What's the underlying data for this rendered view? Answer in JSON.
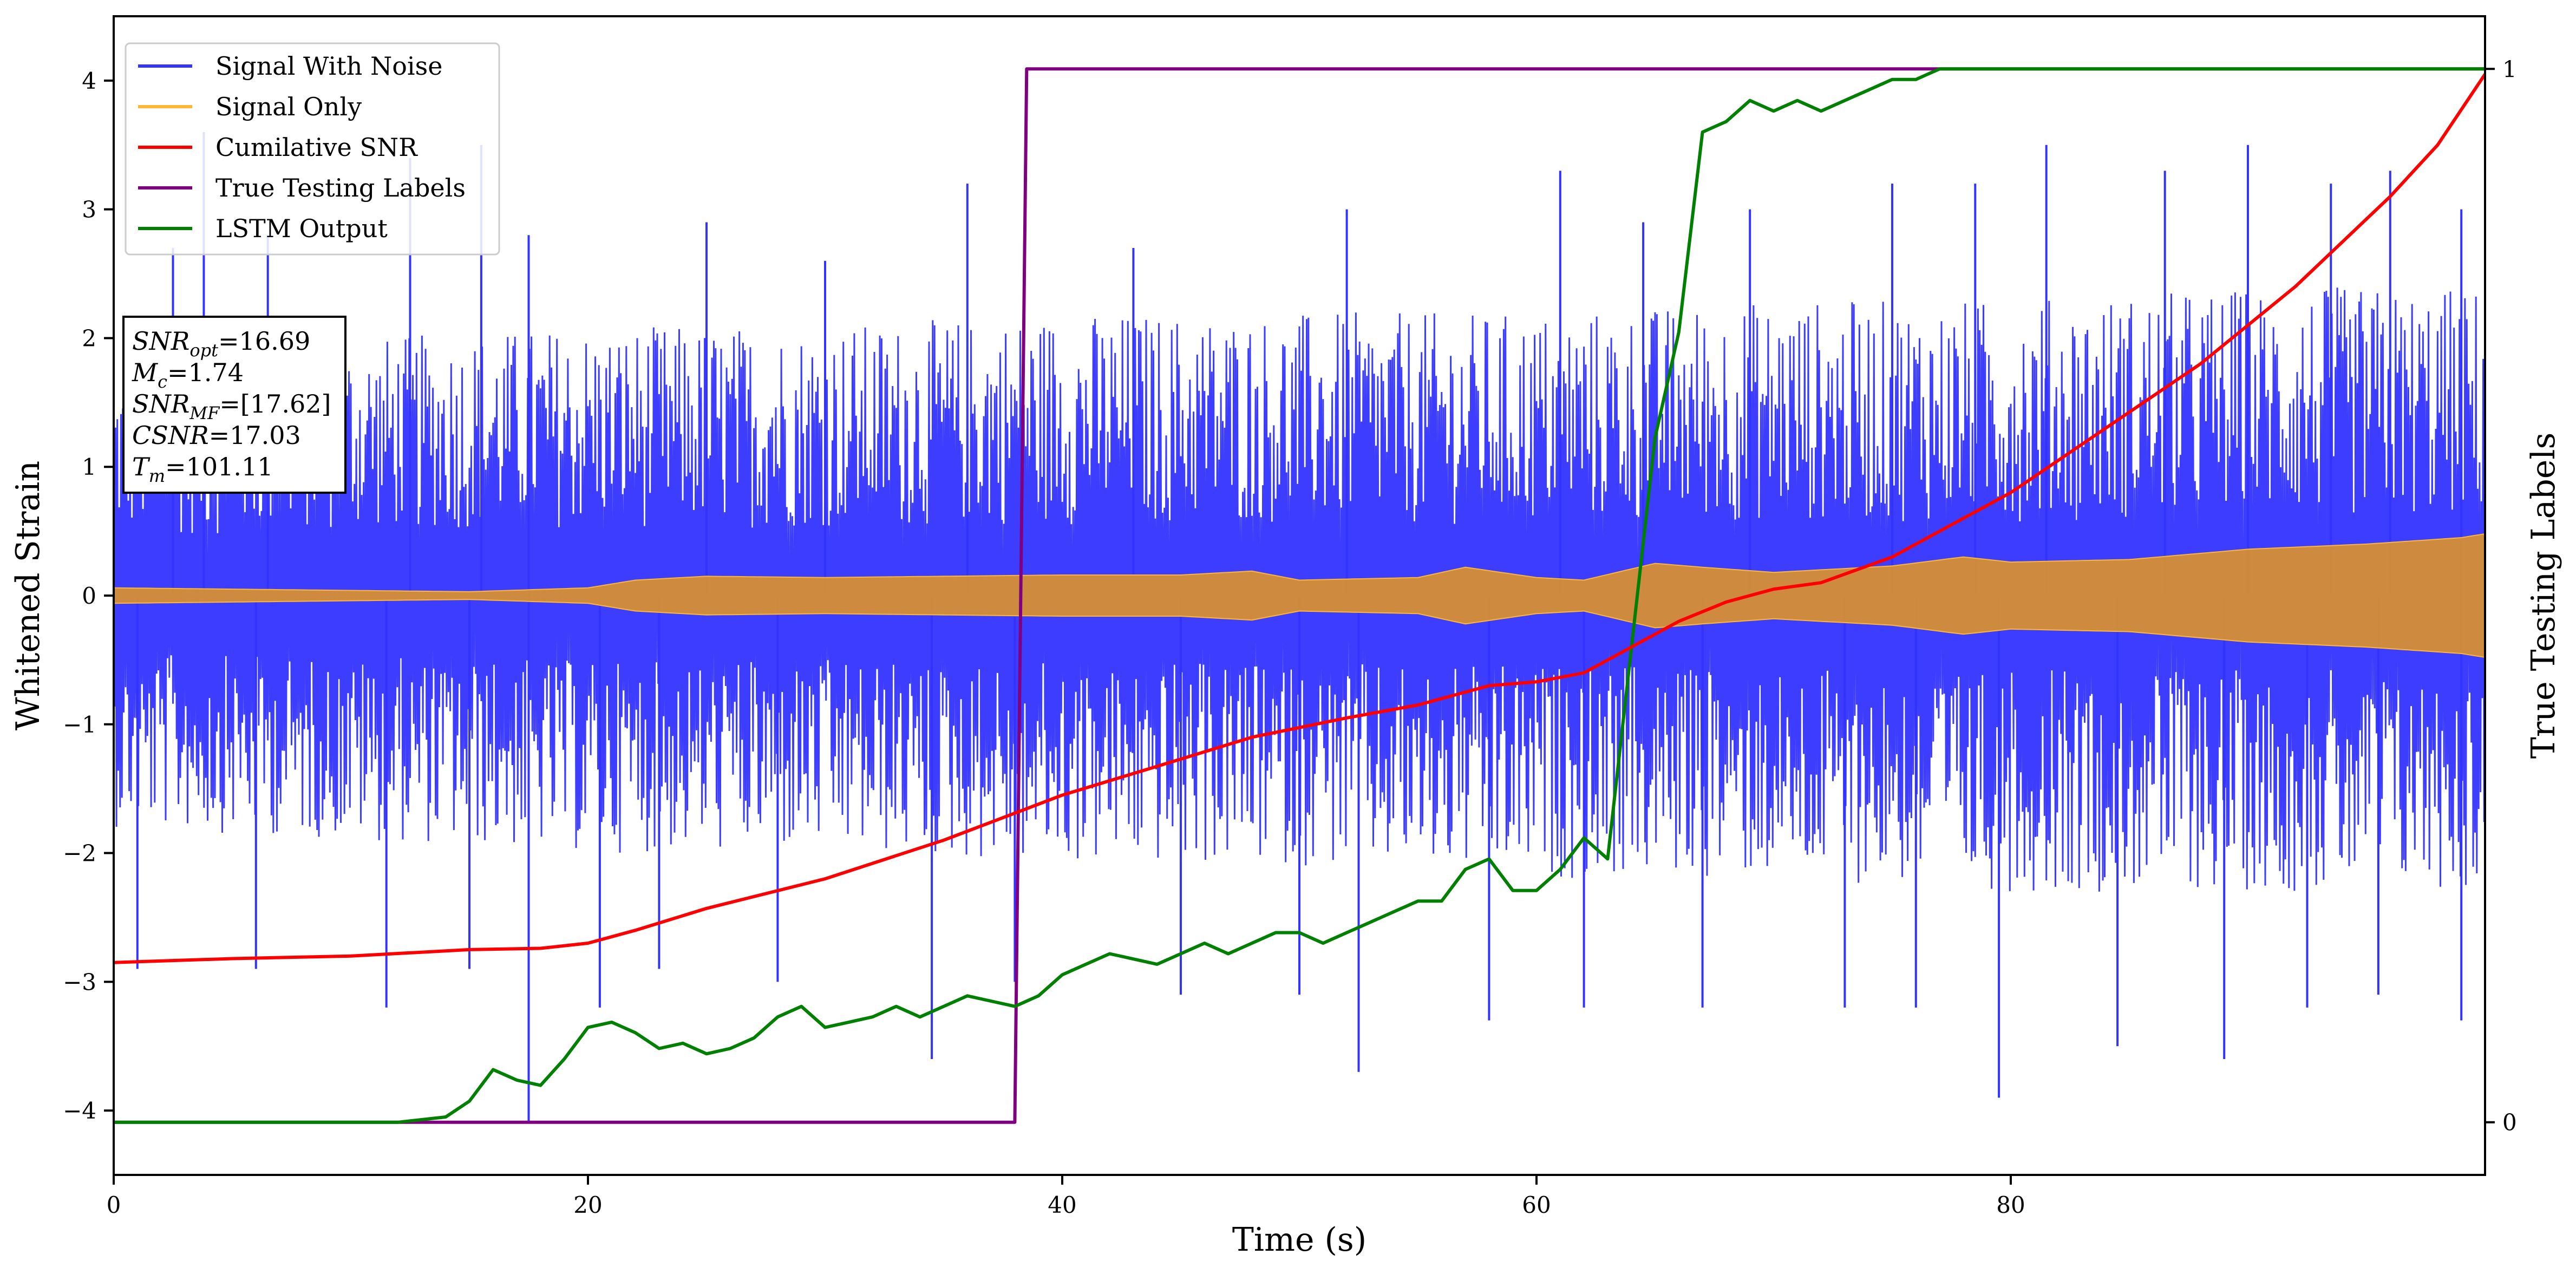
{
  "chart_data": {
    "type": "line",
    "xlabel": "Time (s)",
    "ylabel": "Whitened Strain",
    "y2label": "True Testing Labels",
    "xlim": [
      0,
      100
    ],
    "ylim": [
      -4.5,
      4.5
    ],
    "y2lim": [
      -0.05,
      1.05
    ],
    "x_ticks": [
      0,
      20,
      40,
      60,
      80
    ],
    "y_ticks": [
      -4,
      -3,
      -2,
      -1,
      0,
      1,
      2,
      3,
      4
    ],
    "y2_ticks": [
      0,
      1
    ],
    "grid": false,
    "legend": {
      "position": "top-left",
      "entries": [
        {
          "label": "Signal With Noise",
          "color": "#3333ff"
        },
        {
          "label": "Signal Only",
          "color": "#ffb733"
        },
        {
          "label": "Cumilative SNR",
          "color": "#ff0000"
        },
        {
          "label": "True Testing Labels",
          "color": "#800080"
        },
        {
          "label": "LSTM Output",
          "color": "#008000"
        }
      ]
    },
    "annotation": {
      "lines": [
        {
          "sym": "SNR",
          "sub": "opt",
          "value": "=16.69"
        },
        {
          "sym": "M",
          "sub": "c",
          "value": "=1.74"
        },
        {
          "sym": "SNR",
          "sub": "MF",
          "value": "=[17.62]"
        },
        {
          "sym": "CSNR",
          "sub": "",
          "value": "=17.03"
        },
        {
          "sym": "T",
          "sub": "m",
          "value": "=101.11"
        }
      ]
    },
    "series": [
      {
        "name": "Signal With Noise",
        "axis": "left",
        "color": "#3333ff",
        "style": "dense-noise",
        "band_x": [
          0,
          10,
          20,
          30,
          40,
          50,
          60,
          70,
          80,
          90,
          100
        ],
        "band_hi": [
          1.8,
          2.0,
          2.1,
          2.1,
          2.2,
          2.2,
          2.2,
          2.3,
          2.3,
          2.4,
          2.4
        ],
        "band_lo": [
          -1.8,
          -1.9,
          -2.0,
          -2.0,
          -2.1,
          -2.1,
          -2.2,
          -2.2,
          -2.3,
          -2.3,
          -2.3
        ],
        "spikes": [
          {
            "x": 2.5,
            "y": 2.7
          },
          {
            "x": 3.8,
            "y": 3.6
          },
          {
            "x": 6.5,
            "y": 2.8
          },
          {
            "x": 12.5,
            "y": 3.4
          },
          {
            "x": 15.5,
            "y": 3.5
          },
          {
            "x": 17.5,
            "y": 2.8
          },
          {
            "x": 25.0,
            "y": 2.9
          },
          {
            "x": 30.0,
            "y": 2.6
          },
          {
            "x": 36.0,
            "y": 3.2
          },
          {
            "x": 43.0,
            "y": 2.7
          },
          {
            "x": 52.0,
            "y": 3.0
          },
          {
            "x": 61.0,
            "y": 3.3
          },
          {
            "x": 64.5,
            "y": 2.9
          },
          {
            "x": 69.0,
            "y": 3.0
          },
          {
            "x": 75.0,
            "y": 3.2
          },
          {
            "x": 78.5,
            "y": 3.2
          },
          {
            "x": 81.5,
            "y": 3.5
          },
          {
            "x": 86.5,
            "y": 3.3
          },
          {
            "x": 90.0,
            "y": 3.5
          },
          {
            "x": 93.5,
            "y": 3.2
          },
          {
            "x": 96.0,
            "y": 3.3
          },
          {
            "x": 99.0,
            "y": 3.0
          },
          {
            "x": 1.0,
            "y": -2.9
          },
          {
            "x": 6.0,
            "y": -2.9
          },
          {
            "x": 11.5,
            "y": -3.2
          },
          {
            "x": 15.0,
            "y": -2.9
          },
          {
            "x": 17.5,
            "y": -4.1
          },
          {
            "x": 20.5,
            "y": -3.2
          },
          {
            "x": 23.0,
            "y": -2.9
          },
          {
            "x": 28.0,
            "y": -3.0
          },
          {
            "x": 34.5,
            "y": -3.6
          },
          {
            "x": 38.0,
            "y": -3.0
          },
          {
            "x": 45.0,
            "y": -3.1
          },
          {
            "x": 50.0,
            "y": -3.1
          },
          {
            "x": 52.5,
            "y": -3.7
          },
          {
            "x": 58.0,
            "y": -3.3
          },
          {
            "x": 62.0,
            "y": -3.2
          },
          {
            "x": 67.0,
            "y": -3.2
          },
          {
            "x": 73.0,
            "y": -3.2
          },
          {
            "x": 76.0,
            "y": -3.2
          },
          {
            "x": 79.5,
            "y": -3.9
          },
          {
            "x": 84.5,
            "y": -3.5
          },
          {
            "x": 89.0,
            "y": -3.6
          },
          {
            "x": 92.5,
            "y": -3.2
          },
          {
            "x": 95.5,
            "y": -3.1
          },
          {
            "x": 99.0,
            "y": -3.3
          }
        ]
      },
      {
        "name": "Signal Only",
        "axis": "left",
        "color": "#ffb733",
        "style": "envelope",
        "x": [
          0,
          5,
          10,
          15,
          20,
          22,
          25,
          30,
          35,
          40,
          45,
          48,
          50,
          55,
          57,
          60,
          62,
          65,
          67,
          70,
          75,
          78,
          80,
          85,
          90,
          95,
          99,
          100
        ],
        "amp": [
          0.06,
          0.05,
          0.04,
          0.03,
          0.06,
          0.12,
          0.15,
          0.14,
          0.15,
          0.16,
          0.16,
          0.19,
          0.12,
          0.14,
          0.22,
          0.14,
          0.12,
          0.25,
          0.22,
          0.18,
          0.23,
          0.3,
          0.26,
          0.28,
          0.36,
          0.4,
          0.45,
          0.48
        ]
      },
      {
        "name": "Cumilative SNR",
        "axis": "left",
        "color": "#ff0000",
        "style": "line",
        "x": [
          0,
          5,
          10,
          15,
          18,
          20,
          22,
          25,
          30,
          35,
          40,
          45,
          48,
          52,
          55,
          58,
          60,
          62,
          64,
          66,
          68,
          70,
          72,
          75,
          78,
          80,
          84,
          88,
          92,
          96,
          98,
          100
        ],
        "y": [
          -2.85,
          -2.82,
          -2.8,
          -2.75,
          -2.74,
          -2.7,
          -2.6,
          -2.43,
          -2.2,
          -1.9,
          -1.55,
          -1.27,
          -1.1,
          -0.95,
          -0.85,
          -0.7,
          -0.67,
          -0.6,
          -0.4,
          -0.2,
          -0.05,
          0.05,
          0.1,
          0.3,
          0.6,
          0.8,
          1.3,
          1.8,
          2.4,
          3.1,
          3.5,
          4.05
        ]
      },
      {
        "name": "True Testing Labels",
        "axis": "right",
        "color": "#800080",
        "style": "line",
        "x": [
          0,
          38.0,
          38.5,
          100
        ],
        "y": [
          0,
          0,
          1,
          1
        ]
      },
      {
        "name": "LSTM Output",
        "axis": "right",
        "color": "#008000",
        "style": "line",
        "x": [
          0,
          10,
          12,
          14,
          15,
          16,
          17,
          18,
          19,
          20,
          21,
          22,
          23,
          24,
          25,
          26,
          27,
          28,
          29,
          30,
          31,
          32,
          33,
          34,
          35,
          36,
          37,
          38,
          39,
          40,
          41,
          42,
          43,
          44,
          45,
          46,
          47,
          48,
          49,
          50,
          51,
          52,
          53,
          54,
          55,
          56,
          57,
          58,
          59,
          60,
          61,
          62,
          63,
          64,
          65,
          66,
          67,
          68,
          69,
          70,
          71,
          72,
          73,
          74,
          75,
          76,
          77,
          78,
          79,
          80,
          82,
          84,
          86,
          90,
          95,
          100
        ],
        "y": [
          0,
          0,
          0.0,
          0.005,
          0.02,
          0.05,
          0.04,
          0.035,
          0.06,
          0.09,
          0.095,
          0.085,
          0.07,
          0.075,
          0.065,
          0.07,
          0.08,
          0.1,
          0.11,
          0.09,
          0.095,
          0.1,
          0.11,
          0.1,
          0.11,
          0.12,
          0.115,
          0.11,
          0.12,
          0.14,
          0.15,
          0.16,
          0.155,
          0.15,
          0.16,
          0.17,
          0.16,
          0.17,
          0.18,
          0.18,
          0.17,
          0.18,
          0.19,
          0.2,
          0.21,
          0.21,
          0.24,
          0.25,
          0.22,
          0.22,
          0.24,
          0.27,
          0.25,
          0.45,
          0.65,
          0.75,
          0.94,
          0.95,
          0.97,
          0.96,
          0.97,
          0.96,
          0.97,
          0.98,
          0.99,
          0.99,
          1.0,
          1.0,
          1.0,
          1.0,
          1.0,
          1.0,
          1.0,
          1.0,
          1.0,
          1.0
        ]
      }
    ]
  }
}
